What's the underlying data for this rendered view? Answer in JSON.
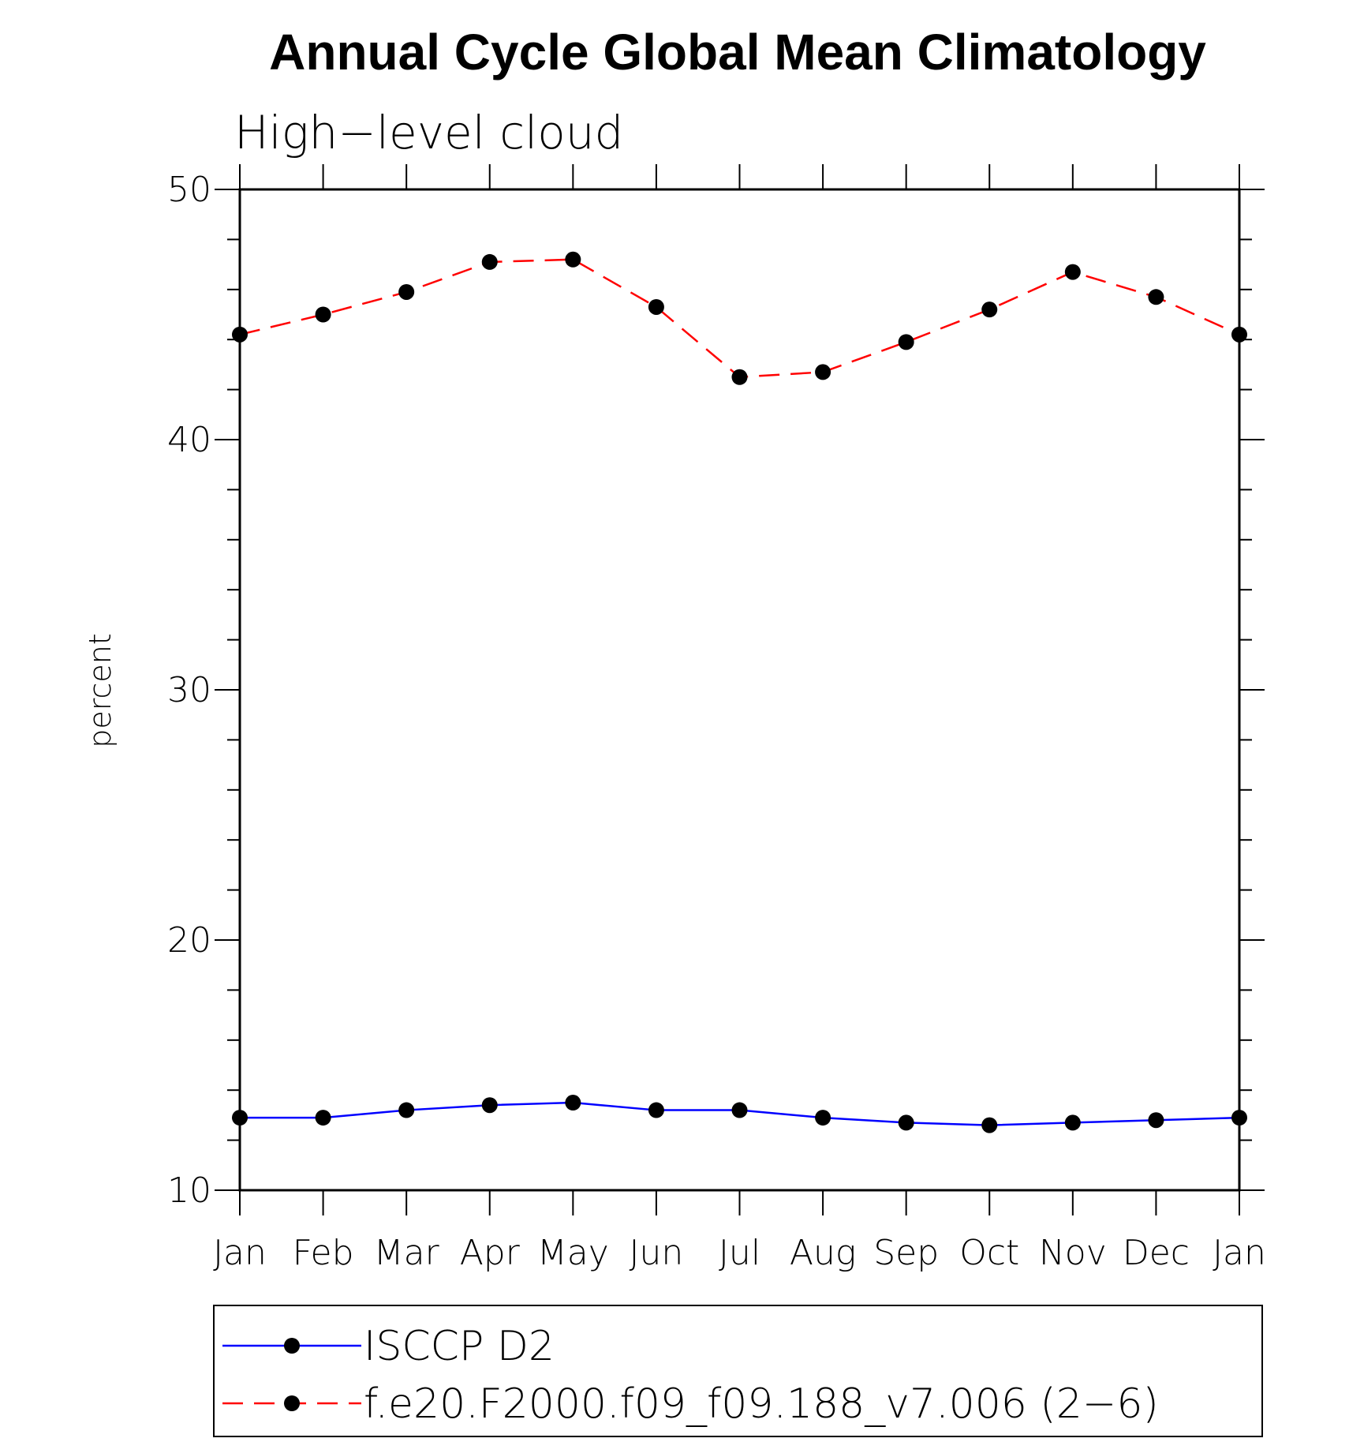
{
  "chart_data": {
    "type": "line",
    "title": "Annual Cycle Global Mean Climatology",
    "subtitle": "High−level cloud",
    "ylabel": "percent",
    "xlabel": "",
    "ylim": [
      10,
      50
    ],
    "yticks": [
      "10",
      "20",
      "30",
      "40",
      "50"
    ],
    "categories": [
      "Jan",
      "Feb",
      "Mar",
      "Apr",
      "May",
      "Jun",
      "Jul",
      "Aug",
      "Sep",
      "Oct",
      "Nov",
      "Dec",
      "Jan"
    ],
    "series": [
      {
        "name": "ISCCP D2",
        "color": "#0000ff",
        "dash": "solid",
        "values": [
          12.9,
          12.9,
          13.2,
          13.4,
          13.5,
          13.2,
          13.2,
          12.9,
          12.7,
          12.6,
          12.7,
          12.8,
          12.9
        ]
      },
      {
        "name": "f.e20.F2000.f09_f09.188_v7.006 (2−6)",
        "color": "#ff0000",
        "dash": "dashed",
        "values": [
          44.2,
          45.0,
          45.9,
          47.1,
          47.2,
          45.3,
          42.5,
          42.7,
          43.9,
          45.2,
          46.7,
          45.7,
          44.2
        ]
      }
    ],
    "legend": "bottom, boxed"
  }
}
